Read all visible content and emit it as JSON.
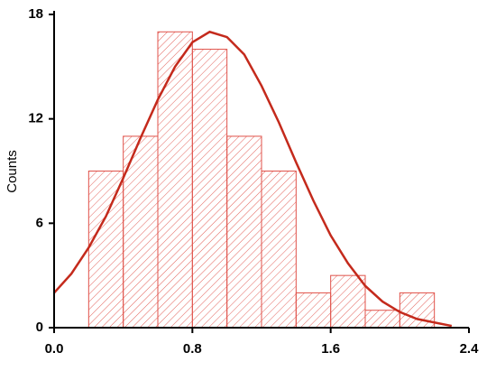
{
  "chart_data": {
    "type": "histogram",
    "ylabel": "Counts",
    "bins": [
      0.2,
      0.4,
      0.6,
      0.8,
      1.0,
      1.2,
      1.4,
      1.6,
      1.8,
      2.0,
      2.2
    ],
    "counts": [
      9,
      11,
      17,
      16,
      11,
      9,
      2,
      3,
      1,
      2
    ],
    "color": "#e0524a",
    "curve": {
      "color": "#c42a1c",
      "x": [
        0,
        0.1,
        0.2,
        0.3,
        0.4,
        0.5,
        0.6,
        0.7,
        0.8,
        0.9,
        1.0,
        1.1,
        1.2,
        1.3,
        1.4,
        1.5,
        1.6,
        1.7,
        1.8,
        1.9,
        2.0,
        2.1,
        2.2,
        2.3
      ],
      "y": [
        2.0,
        3.1,
        4.6,
        6.4,
        8.6,
        10.9,
        13.1,
        15.0,
        16.4,
        17.0,
        16.7,
        15.7,
        13.9,
        11.8,
        9.5,
        7.3,
        5.3,
        3.7,
        2.4,
        1.5,
        0.9,
        0.5,
        0.3,
        0.1
      ]
    },
    "xlim": [
      0,
      2.4
    ],
    "xticks": [
      {
        "value": 0,
        "label": "0.0"
      },
      0.8,
      1.6,
      2.4
    ],
    "ylim": [
      0,
      18
    ],
    "yticks": [
      0,
      6,
      12,
      18
    ]
  }
}
